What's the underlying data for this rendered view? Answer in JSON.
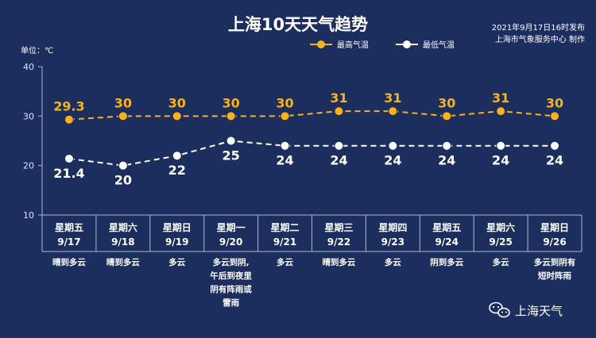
{
  "header": {
    "title": "上海10天天气趋势",
    "publish_time": "2021年9月17日16时发布",
    "publisher": "上海市气象服务中心 制作",
    "unit_label": "单位：℃"
  },
  "watermark": "上海天气",
  "colors": {
    "background": "#1c2e5e",
    "high": "#f5b323",
    "low": "#ffffff",
    "axis": "#aeb8d3"
  },
  "chart_data": {
    "type": "line",
    "ylim": [
      10,
      40
    ],
    "yticks": [
      10,
      20,
      30,
      40
    ],
    "legend_position": "top-right",
    "categories": [
      "9/17",
      "9/18",
      "9/19",
      "9/20",
      "9/21",
      "9/22",
      "9/23",
      "9/24",
      "9/25",
      "9/26"
    ],
    "weekdays": [
      "星期五",
      "星期六",
      "星期日",
      "星期一",
      "星期二",
      "星期三",
      "星期四",
      "星期五",
      "星期六",
      "星期日"
    ],
    "weather": [
      [
        "晴到多云"
      ],
      [
        "晴到多云"
      ],
      [
        "多云"
      ],
      [
        "多云到阴,",
        "午后到夜里",
        "阴有阵雨或",
        "雷雨"
      ],
      [
        "多云"
      ],
      [
        "晴到多云"
      ],
      [
        "多云"
      ],
      [
        "阴到多云"
      ],
      [
        "多云"
      ],
      [
        "多云到阴有",
        "短时阵雨"
      ]
    ],
    "series": [
      {
        "name": "最高气温",
        "values": [
          29.3,
          30,
          30,
          30,
          30,
          31,
          31,
          30,
          31,
          30
        ],
        "labels": [
          "29.3",
          "30",
          "30",
          "30",
          "30",
          "31",
          "31",
          "30",
          "31",
          "30"
        ]
      },
      {
        "name": "最低气温",
        "values": [
          21.4,
          20,
          22,
          25,
          24,
          24,
          24,
          24,
          24,
          24
        ],
        "labels": [
          "21.4",
          "20",
          "22",
          "25",
          "24",
          "24",
          "24",
          "24",
          "24",
          "24"
        ]
      }
    ]
  }
}
